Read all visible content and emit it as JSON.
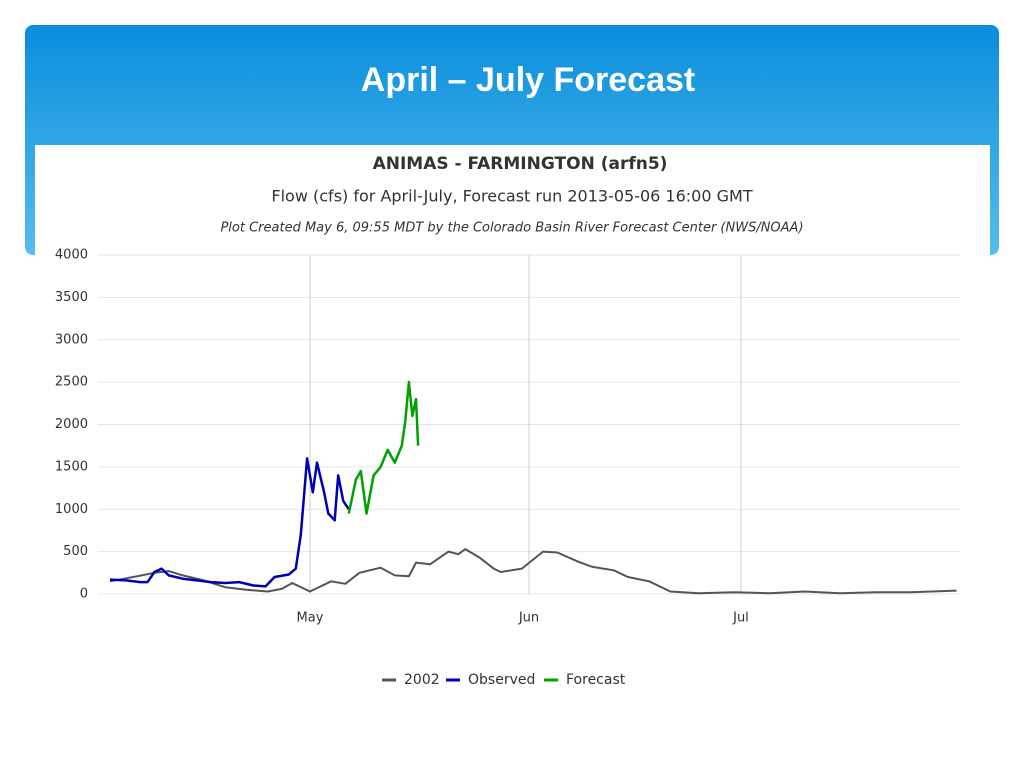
{
  "slide_title": "April – July Forecast",
  "chart_data": {
    "type": "line",
    "title": "ANIMAS - FARMINGTON (arfn5)",
    "subtitle": "Flow (cfs) for April-July, Forecast run 2013-05-06 16:00 GMT",
    "annotation": "Plot Created May 6, 09:55 MDT by the Colorado Basin River Forecast Center (NWS/NOAA)",
    "xlim": [
      0,
      122
    ],
    "xticks": [
      {
        "value": 30,
        "label": "May"
      },
      {
        "value": 61,
        "label": "Jun"
      },
      {
        "value": 91,
        "label": "Jul"
      }
    ],
    "ylim": [
      0,
      4000
    ],
    "yticks": [
      0,
      500,
      1000,
      1500,
      2000,
      2500,
      3000,
      3500,
      4000
    ],
    "grid": true,
    "legend": "bottom",
    "series": [
      {
        "name": "2002",
        "color": "#555555",
        "x": [
          1.7,
          5,
          8,
          10,
          12,
          15,
          18,
          21,
          24,
          26,
          27.5,
          29,
          30,
          31,
          33,
          35,
          37,
          40,
          42,
          44,
          45,
          47,
          49.6,
          51,
          52,
          54,
          56,
          57,
          60,
          63,
          65,
          68,
          70,
          73,
          75,
          78,
          81,
          85,
          90,
          95,
          100,
          105,
          110,
          115,
          121.5
        ],
        "values": [
          150,
          200,
          250,
          270,
          220,
          160,
          80,
          50,
          30,
          60,
          130,
          70,
          30,
          70,
          150,
          120,
          250,
          310,
          220,
          210,
          370,
          350,
          500,
          470,
          530,
          430,
          300,
          260,
          300,
          500,
          490,
          380,
          320,
          280,
          200,
          150,
          30,
          10,
          20,
          10,
          30,
          10,
          20,
          20,
          40
        ]
      },
      {
        "name": "Observed",
        "color": "#0000b3",
        "x": [
          1.7,
          4,
          6,
          7,
          8,
          9,
          10,
          12,
          14,
          16,
          18,
          20,
          22,
          23.7,
          25,
          27,
          28,
          28.7,
          29,
          29.6,
          30.4,
          31,
          32,
          32.6,
          33.5,
          34,
          34.7,
          35.5
        ],
        "values": [
          170,
          160,
          140,
          140,
          260,
          300,
          220,
          180,
          160,
          140,
          130,
          140,
          100,
          90,
          200,
          230,
          300,
          700,
          1000,
          1600,
          1200,
          1550,
          1200,
          950,
          870,
          1400,
          1100,
          1000
        ]
      },
      {
        "name": "Forecast",
        "color": "#00a000",
        "x": [
          35.5,
          36.5,
          37.2,
          38,
          39,
          40,
          41,
          42,
          43,
          43.5,
          44,
          44.5,
          45,
          45.3
        ],
        "values": [
          950,
          1350,
          1450,
          950,
          1400,
          1500,
          1700,
          1550,
          1750,
          2050,
          2500,
          2100,
          2300,
          1750
        ]
      }
    ]
  }
}
